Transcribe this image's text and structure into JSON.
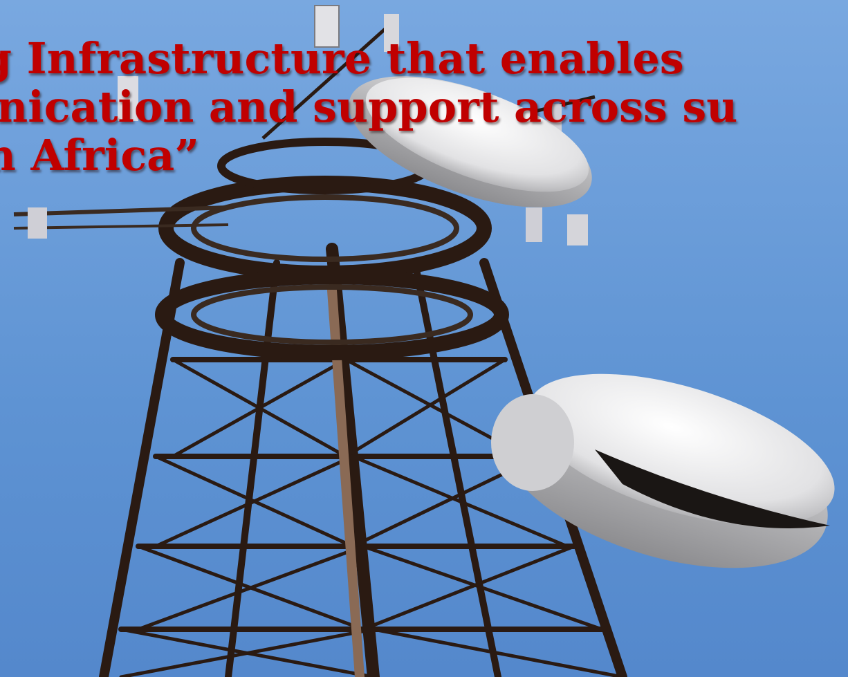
{
  "headline": {
    "line1": "ing Infrastructure that enables",
    "line2": "nunication and support across su",
    "line3": "ran Africa”"
  },
  "colors": {
    "headline_text": "#c00000",
    "sky": "#6f9fd8",
    "tower_steel": "#2a1a12",
    "dish": "#e8e8ea"
  },
  "image_subject": "telecom-tower-with-microwave-dishes"
}
